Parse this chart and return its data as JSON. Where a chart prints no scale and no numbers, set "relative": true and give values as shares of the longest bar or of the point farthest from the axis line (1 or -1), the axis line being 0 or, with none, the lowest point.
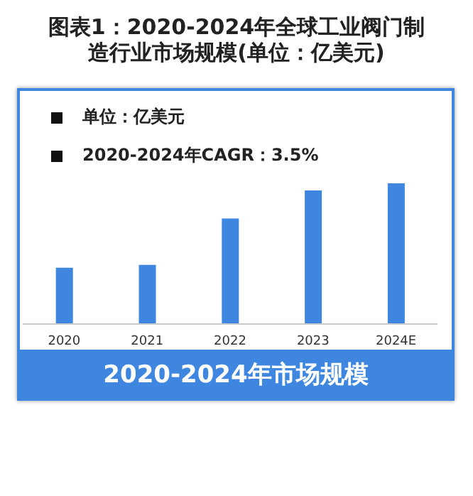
{
  "chart_data": {
    "type": "bar",
    "title": "图表1：2020-2024年全球工业阀门制造行业市场规模(单位：亿美元)",
    "relative": true,
    "categories": [
      "2020",
      "2021",
      "2022",
      "2023",
      "2024E"
    ],
    "values": [
      0.4,
      0.42,
      0.75,
      0.95,
      1
    ],
    "color": "#3f86e0",
    "annotations": [
      "单位：亿美元",
      "2020-2024年CAGR：3.5%",
      "2020-2024年市场规模"
    ],
    "grid": false,
    "legend": false
  }
}
